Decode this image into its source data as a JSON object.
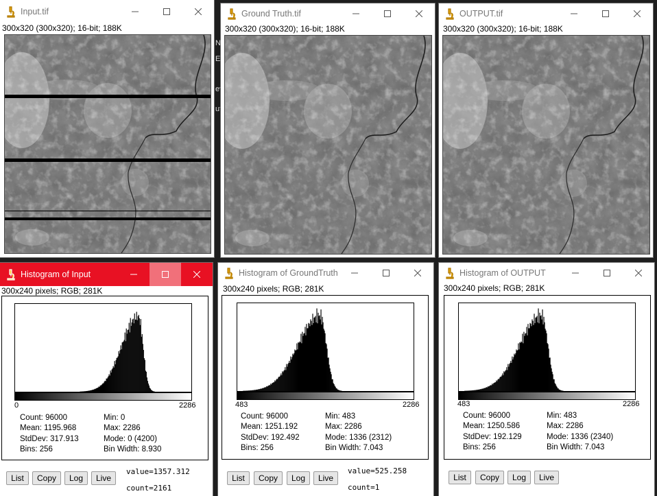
{
  "images": [
    {
      "title": "Input.tif",
      "info": "300x320   (300x320); 16-bit; 188K"
    },
    {
      "title": "Ground Truth.tif",
      "info": "300x320   (300x320); 16-bit; 188K"
    },
    {
      "title": "OUTPUT.tif",
      "info": "300x320   (300x320); 16-bit; 188K"
    }
  ],
  "behind_text": [
    "N",
    "Ea",
    "ev",
    "ut"
  ],
  "histograms": [
    {
      "title": "Histogram of Input",
      "info": "300x240 pixels; RGB; 281K",
      "axis_min": "0",
      "axis_max": "2286",
      "count": "Count: 96000",
      "mean": "Mean: 1195.968",
      "stddev": "StdDev: 317.913",
      "bins": "Bins: 256",
      "min": "Min: 0",
      "max": "Max: 2286",
      "mode": "Mode: 0 (4200)",
      "binwidth": "Bin Width: 8.930",
      "value": "value=1357.312",
      "count_readout": "count=2161",
      "peak_fraction": 0.7,
      "sigma_fraction": 0.06
    },
    {
      "title": "Histogram of GroundTruth",
      "info": "300x240 pixels; RGB; 281K",
      "axis_min": "483",
      "axis_max": "2286",
      "count": "Count: 96000",
      "mean": "Mean: 1251.192",
      "stddev": "StdDev: 192.492",
      "bins": "Bins: 256",
      "min": "Min: 483",
      "max": "Max: 2286",
      "mode": "Mode: 1336 (2312)",
      "binwidth": "Bin Width: 7.043",
      "value": "value=525.258",
      "count_readout": "count=1",
      "peak_fraction": 0.47,
      "sigma_fraction": 0.08
    },
    {
      "title": "Histogram of OUTPUT",
      "info": "300x240 pixels; RGB; 281K",
      "axis_min": "483",
      "axis_max": "2286",
      "count": "Count: 96000",
      "mean": "Mean: 1250.586",
      "stddev": "StdDev: 192.129",
      "bins": "Bins: 256",
      "min": "Min: 483",
      "max": "Max: 2286",
      "mode": "Mode: 1336 (2340)",
      "binwidth": "Bin Width: 7.043",
      "value": "",
      "count_readout": "",
      "peak_fraction": 0.47,
      "sigma_fraction": 0.08
    }
  ],
  "buttons": {
    "list": "List",
    "copy": "Copy",
    "log": "Log",
    "live": "Live"
  },
  "icons": {
    "app": "microscope-icon",
    "minimize": "minimize-icon",
    "maximize": "maximize-icon",
    "close": "close-icon"
  },
  "colors": {
    "active_titlebar": "#e81123",
    "inactive_title_text": "#777777"
  }
}
